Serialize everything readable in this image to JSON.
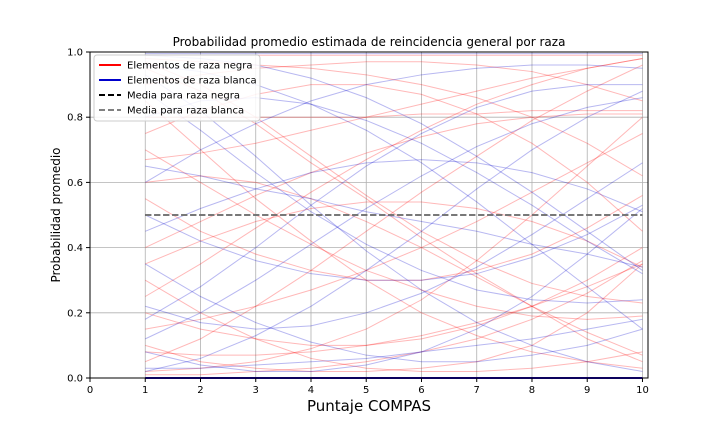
{
  "chart_data": {
    "type": "line",
    "title": "Probabilidad promedio estimada de reincidencia general por raza",
    "xlabel": "Puntaje COMPAS",
    "ylabel": "Probabilidad promedio",
    "xlim": [
      0,
      10.1
    ],
    "ylim": [
      0,
      1.0
    ],
    "x_ticks": [
      0,
      1,
      2,
      3,
      4,
      5,
      6,
      7,
      8,
      9,
      10
    ],
    "x_tick_labels": [
      "0",
      "1",
      "2",
      "3",
      "4",
      "5",
      "6",
      "7",
      "8",
      "9",
      "10"
    ],
    "y_ticks": [
      0,
      0.2,
      0.4,
      0.6,
      0.8,
      1.0
    ],
    "y_tick_labels": [
      "0.0",
      "0.2",
      "0.4",
      "0.6",
      "0.8",
      "1.0"
    ],
    "grid": true,
    "legend_position": "top-left",
    "legend": [
      {
        "label": "Elementos de raza negra",
        "color": "#ff0000",
        "style": "solid"
      },
      {
        "label": "Elementos de raza blanca",
        "color": "#0000cc",
        "style": "solid"
      },
      {
        "label": "Media para raza negra",
        "color": "#000000",
        "style": "dashed"
      },
      {
        "label": "Media para raza blanca",
        "color": "#808080",
        "style": "dashed"
      }
    ],
    "x": [
      1,
      2,
      3,
      4,
      5,
      6,
      7,
      8,
      9,
      10
    ],
    "mean_series": [
      {
        "group": "negra",
        "color": "#000000",
        "values": [
          0.5,
          0.5,
          0.5,
          0.5,
          0.5,
          0.5,
          0.5,
          0.5,
          0.5,
          0.5
        ]
      },
      {
        "group": "blanca",
        "color": "#808080",
        "values": [
          0.5,
          0.5,
          0.5,
          0.5,
          0.5,
          0.5,
          0.5,
          0.5,
          0.5,
          0.5
        ]
      }
    ],
    "element_series_note_free": true,
    "element_series": [
      {
        "group": "negra",
        "color": "#ff0000",
        "values": [
          0.0,
          0.0,
          0.0,
          0.0,
          0.0,
          0.0,
          0.0,
          0.0,
          0.0,
          0.0
        ]
      },
      {
        "group": "negra",
        "color": "#ff0000",
        "values": [
          0.99,
          0.99,
          0.99,
          0.99,
          0.99,
          0.99,
          0.99,
          0.99,
          0.99,
          0.99
        ]
      },
      {
        "group": "negra",
        "color": "#ff0000",
        "values": [
          0.8,
          0.8,
          0.8,
          0.8,
          0.8,
          0.81,
          0.81,
          0.82,
          0.82,
          0.82
        ]
      },
      {
        "group": "negra",
        "color": "#ff0000",
        "values": [
          0.67,
          0.69,
          0.72,
          0.76,
          0.8,
          0.84,
          0.88,
          0.92,
          0.95,
          0.98
        ]
      },
      {
        "group": "negra",
        "color": "#ff0000",
        "values": [
          0.95,
          0.88,
          0.78,
          0.66,
          0.55,
          0.43,
          0.32,
          0.22,
          0.12,
          0.05
        ]
      },
      {
        "group": "negra",
        "color": "#ff0000",
        "values": [
          0.05,
          0.12,
          0.22,
          0.33,
          0.45,
          0.57,
          0.68,
          0.79,
          0.88,
          0.96
        ]
      },
      {
        "group": "negra",
        "color": "#ff0000",
        "values": [
          0.3,
          0.2,
          0.12,
          0.06,
          0.03,
          0.02,
          0.02,
          0.03,
          0.05,
          0.08
        ]
      },
      {
        "group": "negra",
        "color": "#ff0000",
        "values": [
          0.6,
          0.62,
          0.6,
          0.55,
          0.48,
          0.4,
          0.31,
          0.22,
          0.14,
          0.07
        ]
      },
      {
        "group": "negra",
        "color": "#ff0000",
        "values": [
          0.15,
          0.18,
          0.22,
          0.27,
          0.33,
          0.4,
          0.48,
          0.57,
          0.66,
          0.75
        ]
      },
      {
        "group": "negra",
        "color": "#ff0000",
        "values": [
          0.85,
          0.7,
          0.55,
          0.42,
          0.3,
          0.2,
          0.13,
          0.08,
          0.05,
          0.03
        ]
      },
      {
        "group": "negra",
        "color": "#ff0000",
        "values": [
          0.02,
          0.03,
          0.05,
          0.09,
          0.15,
          0.24,
          0.36,
          0.5,
          0.65,
          0.8
        ]
      },
      {
        "group": "negra",
        "color": "#ff0000",
        "values": [
          0.98,
          0.97,
          0.96,
          0.95,
          0.93,
          0.9,
          0.86,
          0.8,
          0.72,
          0.62
        ]
      },
      {
        "group": "negra",
        "color": "#ff0000",
        "values": [
          0.4,
          0.48,
          0.56,
          0.63,
          0.69,
          0.74,
          0.78,
          0.8,
          0.81,
          0.81
        ]
      },
      {
        "group": "negra",
        "color": "#ff0000",
        "values": [
          0.2,
          0.15,
          0.12,
          0.1,
          0.1,
          0.12,
          0.16,
          0.22,
          0.3,
          0.4
        ]
      },
      {
        "group": "negra",
        "color": "#ff0000",
        "values": [
          0.75,
          0.82,
          0.87,
          0.9,
          0.9,
          0.87,
          0.81,
          0.72,
          0.6,
          0.45
        ]
      },
      {
        "group": "negra",
        "color": "#ff0000",
        "values": [
          0.1,
          0.05,
          0.03,
          0.02,
          0.02,
          0.03,
          0.05,
          0.1,
          0.2,
          0.35
        ]
      },
      {
        "group": "negra",
        "color": "#ff0000",
        "values": [
          0.55,
          0.45,
          0.38,
          0.33,
          0.3,
          0.3,
          0.33,
          0.38,
          0.46,
          0.56
        ]
      },
      {
        "group": "negra",
        "color": "#ff0000",
        "values": [
          0.9,
          0.93,
          0.95,
          0.96,
          0.97,
          0.97,
          0.96,
          0.94,
          0.9,
          0.85
        ]
      },
      {
        "group": "negra",
        "color": "#ff0000",
        "values": [
          0.01,
          0.01,
          0.02,
          0.03,
          0.05,
          0.08,
          0.12,
          0.18,
          0.26,
          0.36
        ]
      },
      {
        "group": "negra",
        "color": "#ff0000",
        "values": [
          0.35,
          0.42,
          0.48,
          0.52,
          0.54,
          0.54,
          0.52,
          0.48,
          0.42,
          0.34
        ]
      },
      {
        "group": "negra",
        "color": "#ff0000",
        "values": [
          0.7,
          0.6,
          0.5,
          0.41,
          0.33,
          0.27,
          0.22,
          0.19,
          0.18,
          0.19
        ]
      },
      {
        "group": "negra",
        "color": "#ff0000",
        "values": [
          0.25,
          0.35,
          0.46,
          0.57,
          0.67,
          0.76,
          0.84,
          0.9,
          0.95,
          0.98
        ]
      },
      {
        "group": "negra",
        "color": "#ff0000",
        "values": [
          0.97,
          0.9,
          0.8,
          0.68,
          0.56,
          0.45,
          0.36,
          0.29,
          0.25,
          0.23
        ]
      },
      {
        "group": "negra",
        "color": "#ff0000",
        "values": [
          0.08,
          0.07,
          0.07,
          0.08,
          0.1,
          0.13,
          0.17,
          0.22,
          0.28,
          0.35
        ]
      },
      {
        "group": "blanca",
        "color": "#0000cc",
        "values": [
          0.0,
          0.0,
          0.0,
          0.0,
          0.0,
          0.0,
          0.0,
          0.0,
          0.0,
          0.0
        ]
      },
      {
        "group": "blanca",
        "color": "#0000cc",
        "values": [
          0.995,
          0.995,
          0.995,
          0.995,
          0.995,
          0.995,
          0.995,
          0.995,
          0.995,
          0.995
        ]
      },
      {
        "group": "blanca",
        "color": "#0000cc",
        "values": [
          0.65,
          0.62,
          0.58,
          0.55,
          0.51,
          0.48,
          0.45,
          0.41,
          0.38,
          0.34
        ]
      },
      {
        "group": "blanca",
        "color": "#0000cc",
        "values": [
          0.02,
          0.06,
          0.13,
          0.22,
          0.33,
          0.45,
          0.58,
          0.7,
          0.8,
          0.88
        ]
      },
      {
        "group": "blanca",
        "color": "#0000cc",
        "values": [
          0.93,
          0.82,
          0.68,
          0.53,
          0.39,
          0.27,
          0.17,
          0.1,
          0.05,
          0.02
        ]
      },
      {
        "group": "blanca",
        "color": "#0000cc",
        "values": [
          0.22,
          0.17,
          0.15,
          0.16,
          0.2,
          0.26,
          0.34,
          0.44,
          0.55,
          0.66
        ]
      },
      {
        "group": "blanca",
        "color": "#0000cc",
        "values": [
          0.8,
          0.85,
          0.86,
          0.84,
          0.79,
          0.72,
          0.63,
          0.53,
          0.42,
          0.32
        ]
      },
      {
        "group": "blanca",
        "color": "#0000cc",
        "values": [
          0.08,
          0.04,
          0.02,
          0.02,
          0.04,
          0.08,
          0.15,
          0.25,
          0.38,
          0.52
        ]
      },
      {
        "group": "blanca",
        "color": "#0000cc",
        "values": [
          0.45,
          0.52,
          0.58,
          0.63,
          0.66,
          0.67,
          0.66,
          0.63,
          0.58,
          0.51
        ]
      },
      {
        "group": "blanca",
        "color": "#0000cc",
        "values": [
          0.99,
          0.98,
          0.96,
          0.92,
          0.86,
          0.78,
          0.68,
          0.57,
          0.45,
          0.33
        ]
      },
      {
        "group": "blanca",
        "color": "#0000cc",
        "values": [
          0.12,
          0.2,
          0.3,
          0.41,
          0.52,
          0.62,
          0.71,
          0.78,
          0.83,
          0.86
        ]
      },
      {
        "group": "blanca",
        "color": "#0000cc",
        "values": [
          0.35,
          0.25,
          0.17,
          0.11,
          0.07,
          0.05,
          0.05,
          0.07,
          0.1,
          0.15
        ]
      },
      {
        "group": "blanca",
        "color": "#0000cc",
        "values": [
          0.6,
          0.7,
          0.78,
          0.85,
          0.9,
          0.93,
          0.95,
          0.96,
          0.96,
          0.95
        ]
      },
      {
        "group": "blanca",
        "color": "#0000cc",
        "values": [
          0.03,
          0.03,
          0.04,
          0.05,
          0.06,
          0.08,
          0.1,
          0.12,
          0.15,
          0.18
        ]
      },
      {
        "group": "blanca",
        "color": "#0000cc",
        "values": [
          0.88,
          0.76,
          0.63,
          0.51,
          0.41,
          0.33,
          0.27,
          0.24,
          0.23,
          0.24
        ]
      },
      {
        "group": "blanca",
        "color": "#0000cc",
        "values": [
          0.18,
          0.28,
          0.4,
          0.53,
          0.65,
          0.75,
          0.83,
          0.88,
          0.9,
          0.9
        ]
      },
      {
        "group": "blanca",
        "color": "#0000cc",
        "values": [
          0.5,
          0.42,
          0.36,
          0.32,
          0.3,
          0.3,
          0.32,
          0.37,
          0.44,
          0.53
        ]
      },
      {
        "group": "blanca",
        "color": "#0000cc",
        "values": [
          0.96,
          0.94,
          0.9,
          0.84,
          0.76,
          0.66,
          0.54,
          0.41,
          0.28,
          0.15
        ]
      }
    ]
  }
}
